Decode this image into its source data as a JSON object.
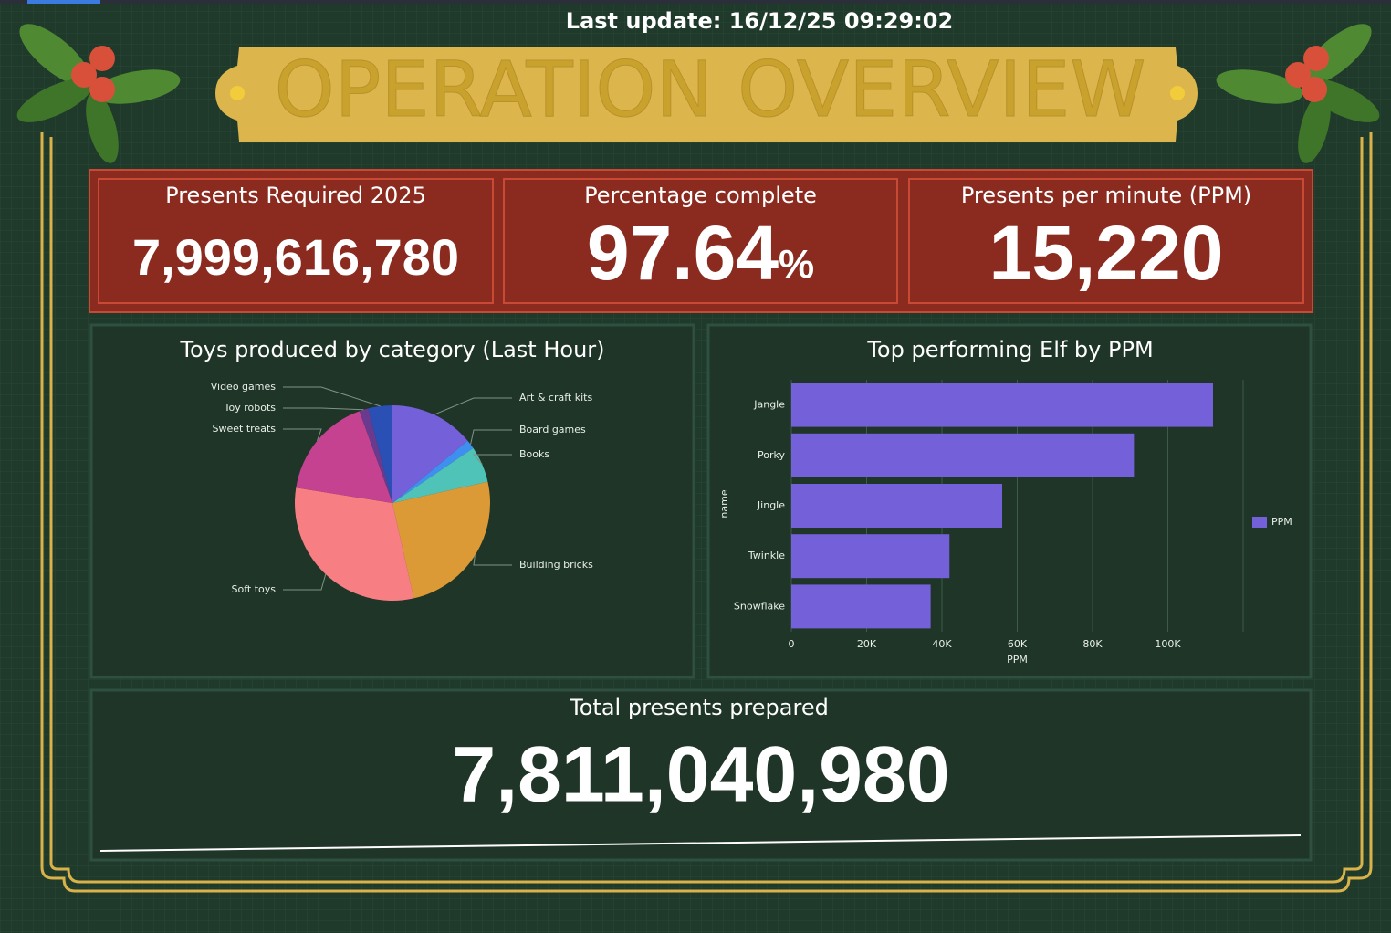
{
  "header": {
    "last_update_label": "Last update:",
    "last_update": "16/12/25 09:29:02",
    "title": "OPERATION OVERVIEW"
  },
  "kpis": [
    {
      "label": "Presents Required 2025",
      "value": "7,999,616,780"
    },
    {
      "label": "Percentage complete",
      "value": "97.64",
      "unit": "%"
    },
    {
      "label": "Presents per minute (PPM)",
      "value": "15,220"
    }
  ],
  "total": {
    "label": "Total presents prepared",
    "value": "7,811,040,980"
  },
  "chart_data": [
    {
      "type": "pie",
      "title": "Toys produced by category (Last Hour)",
      "categories": [
        "Art & craft kits",
        "Board games",
        "Books",
        "Building bricks",
        "Soft toys",
        "Sweet treats",
        "Toy robots",
        "Video games"
      ],
      "values": [
        14,
        1.5,
        6,
        25,
        31,
        17,
        1.5,
        4
      ],
      "colors": [
        "#7460d8",
        "#3f8ff0",
        "#4fc3b8",
        "#db9a35",
        "#f77f84",
        "#c4428f",
        "#6a3a8f",
        "#2a4fb5"
      ]
    },
    {
      "type": "hbar",
      "title": "Top performing Elf by PPM",
      "x_label": "PPM",
      "y_label": "name",
      "categories": [
        "Jangle",
        "Porky",
        "Jingle",
        "Twinkle",
        "Snowflake"
      ],
      "series": [
        {
          "name": "PPM",
          "color": "#7460d8",
          "values": [
            112000,
            91000,
            56000,
            42000,
            37000
          ]
        }
      ],
      "xlim": [
        0,
        120000
      ],
      "xticks": [
        0,
        {
          "value": 20000,
          "label": "20K"
        },
        {
          "value": 40000,
          "label": "40K"
        },
        {
          "value": 60000,
          "label": "60K"
        },
        {
          "value": 80000,
          "label": "80K"
        },
        {
          "value": 100000,
          "label": "100K"
        }
      ],
      "grid": true,
      "legend": "right"
    }
  ]
}
